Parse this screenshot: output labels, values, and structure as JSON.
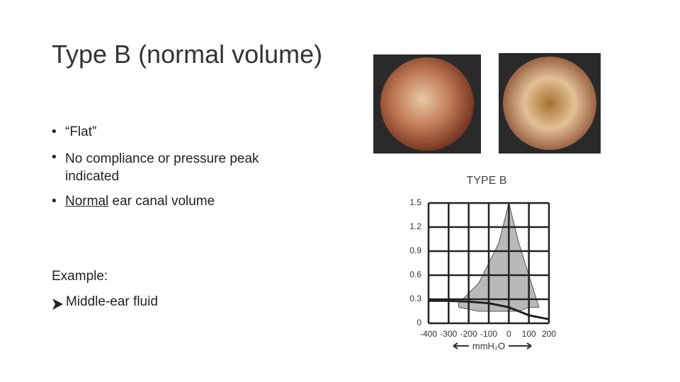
{
  "slide": {
    "title": "Type B  (normal volume)",
    "bullets": [
      "“Flat”",
      "No compliance or pressure peak indicated"
    ],
    "bullet3": {
      "underlined": "Normal",
      "rest": " ear canal volume"
    },
    "example_label": "Example:",
    "example_item": "Middle-ear fluid"
  },
  "chart_data": {
    "type": "line",
    "title": "TYPE B",
    "xlabel": "mmH₂O",
    "x": [
      -400,
      -300,
      -200,
      -100,
      0,
      100,
      200
    ],
    "xlim": [
      -400,
      200
    ],
    "xticks": [
      -400,
      -300,
      -200,
      -100,
      0,
      100,
      200
    ],
    "ylim": [
      0,
      1.5
    ],
    "yticks": [
      0,
      0.3,
      0.6,
      0.9,
      1.2,
      1.5
    ],
    "grid": true,
    "series": [
      {
        "color": "#222222",
        "values": [
          0.28,
          0.28,
          0.27,
          0.25,
          0.2,
          0.1,
          0.05
        ]
      }
    ],
    "normal_range": {
      "color": "#a8a8a8",
      "x": [
        -250,
        -150,
        -50,
        0,
        50,
        100,
        150
      ],
      "upper": [
        0.25,
        0.5,
        1.0,
        1.5,
        1.0,
        0.6,
        0.2
      ],
      "lower": [
        0.2,
        0.15,
        0.15,
        0.15,
        0.15,
        0.2,
        0.2
      ]
    }
  }
}
